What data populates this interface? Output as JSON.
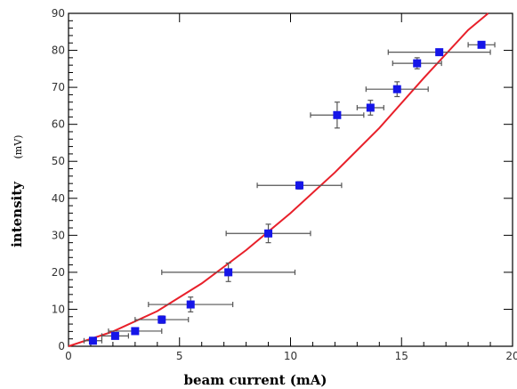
{
  "chart_data": {
    "type": "scatter",
    "xlabel": "beam current (mA)",
    "ylabel": "intensity",
    "ylabel_unit": "(mV)",
    "xlim": [
      0,
      20
    ],
    "ylim": [
      0,
      90
    ],
    "x_ticks": [
      0,
      5,
      10,
      15,
      20
    ],
    "y_ticks": [
      0,
      10,
      20,
      30,
      40,
      50,
      60,
      70,
      80,
      90
    ],
    "grid": false,
    "legend": "none",
    "points": [
      {
        "x": 1.1,
        "y": 1.5,
        "xerr": 0.4,
        "yerr": 0.5
      },
      {
        "x": 2.1,
        "y": 2.8,
        "xerr": 0.6,
        "yerr": 0.8
      },
      {
        "x": 3.0,
        "y": 4.1,
        "xerr": 1.2,
        "yerr": 0.8
      },
      {
        "x": 4.2,
        "y": 7.2,
        "xerr": 1.2,
        "yerr": 1.0
      },
      {
        "x": 5.5,
        "y": 11.3,
        "xerr": 1.9,
        "yerr": 2.0
      },
      {
        "x": 7.2,
        "y": 20.0,
        "xerr": 3.0,
        "yerr": 2.5
      },
      {
        "x": 9.0,
        "y": 30.5,
        "xerr": 1.9,
        "yerr": 2.5
      },
      {
        "x": 10.4,
        "y": 43.5,
        "xerr": 1.9,
        "yerr": 1.0
      },
      {
        "x": 12.1,
        "y": 62.5,
        "xerr": 1.2,
        "yerr": 3.5
      },
      {
        "x": 13.6,
        "y": 64.5,
        "xerr": 0.6,
        "yerr": 2.0
      },
      {
        "x": 14.8,
        "y": 69.5,
        "xerr": 1.4,
        "yerr": 2.0
      },
      {
        "x": 15.7,
        "y": 76.5,
        "xerr": 1.1,
        "yerr": 1.5
      },
      {
        "x": 16.7,
        "y": 79.5,
        "xerr": 2.3,
        "yerr": 0.5
      },
      {
        "x": 18.6,
        "y": 81.5,
        "xerr": 0.6,
        "yerr": 0.5
      }
    ],
    "fit_curve": {
      "color": "#e8202a",
      "points": [
        [
          0,
          0
        ],
        [
          2,
          4.0
        ],
        [
          4,
          9.5
        ],
        [
          6,
          17.0
        ],
        [
          8,
          26.0
        ],
        [
          10,
          36.0
        ],
        [
          12,
          47.0
        ],
        [
          14,
          59.0
        ],
        [
          16,
          72.5
        ],
        [
          18,
          85.5
        ],
        [
          18.9,
          91
        ]
      ]
    },
    "marker_color": "#1515e8",
    "errorbar_color": "#555555"
  }
}
